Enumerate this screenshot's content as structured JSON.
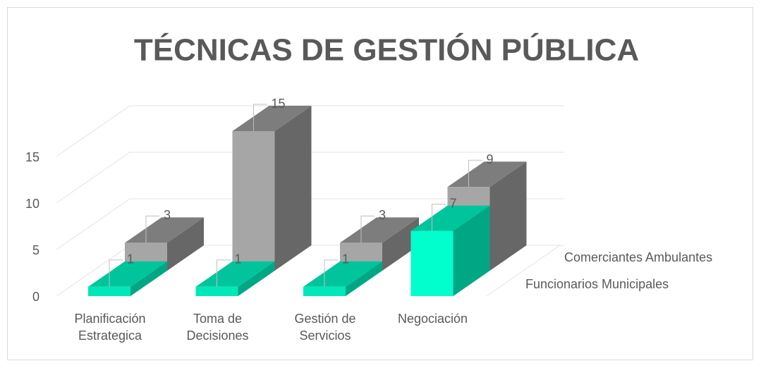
{
  "chart_data": {
    "type": "bar3d",
    "title": "TÉCNICAS  DE  GESTIÓN  PÚBLICA",
    "categories": [
      "Planificación Estrategica",
      "Toma de Decisiones",
      "Gestión de Servicios",
      "Negociación"
    ],
    "series": [
      {
        "name": "Funcionarios Municipales",
        "color": "#00e8b8",
        "values": [
          1,
          1,
          1,
          7
        ]
      },
      {
        "name": "Comerciantes Ambulantes",
        "color": "#a6a6a6",
        "values": [
          3,
          15,
          3,
          9
        ]
      }
    ],
    "ylim": [
      0,
      15
    ],
    "yticks": [
      0,
      5,
      10,
      15
    ],
    "grid": true
  }
}
